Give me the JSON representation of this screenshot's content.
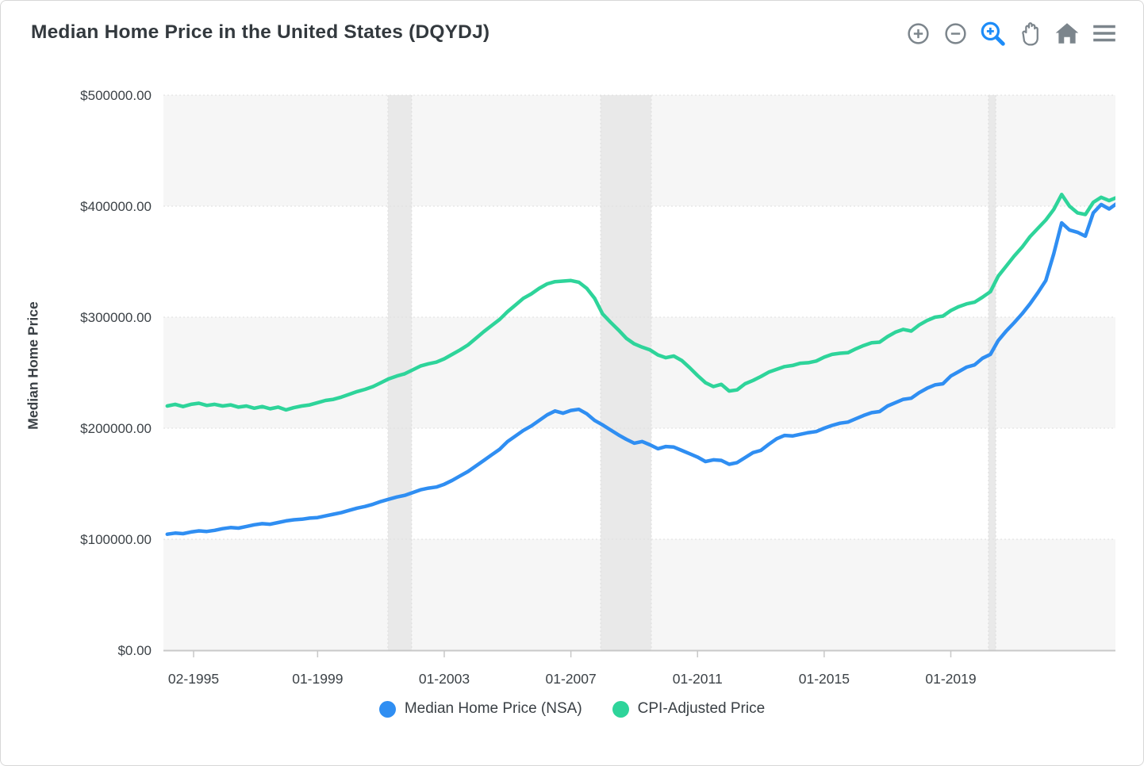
{
  "header": {
    "title": "Median Home Price in the United States (DQYDJ)",
    "icon_color": "#7c858c",
    "accent_color": "#1d8cf8",
    "toolbar": [
      {
        "name": "zoom-in",
        "active": false
      },
      {
        "name": "zoom-out",
        "active": false
      },
      {
        "name": "zoom-select",
        "active": true
      },
      {
        "name": "pan",
        "active": false
      },
      {
        "name": "home",
        "active": false
      },
      {
        "name": "menu",
        "active": false
      }
    ]
  },
  "legend": {
    "items": [
      {
        "label": "Median Home Price (NSA)",
        "color": "#2f8ef2"
      },
      {
        "label": "CPI-Adjusted Price",
        "color": "#2ed49a"
      }
    ]
  },
  "chart_data": {
    "type": "line",
    "title": "Median Home Price in the United States (DQYDJ)",
    "xlabel": "",
    "ylabel": "Median Home Price",
    "x_range": [
      1994.13,
      2024.2
    ],
    "ylim": [
      0,
      500000
    ],
    "grid": "horizontal-dotted",
    "band_fill_values": [
      [
        0,
        100000
      ],
      [
        200000,
        300000
      ],
      [
        400000,
        500000
      ]
    ],
    "band_color": "#f6f6f6",
    "recession_shading": [
      {
        "start": 2001.22,
        "end": 2001.97
      },
      {
        "start": 2007.94,
        "end": 2009.54
      },
      {
        "start": 2020.19,
        "end": 2020.42
      }
    ],
    "recession_color": "#e9e9e9",
    "y_ticks": [
      {
        "value": 0,
        "label": "$0.00"
      },
      {
        "value": 100000,
        "label": "$100000.00"
      },
      {
        "value": 200000,
        "label": "$200000.00"
      },
      {
        "value": 300000,
        "label": "$300000.00"
      },
      {
        "value": 400000,
        "label": "$400000.00"
      },
      {
        "value": 500000,
        "label": "$500000.00"
      }
    ],
    "x_ticks": [
      {
        "value": 1995.083,
        "label": "02-1995"
      },
      {
        "value": 1999.0,
        "label": "01-1999"
      },
      {
        "value": 2003.0,
        "label": "01-2003"
      },
      {
        "value": 2007.0,
        "label": "01-2007"
      },
      {
        "value": 2011.0,
        "label": "01-2011"
      },
      {
        "value": 2015.0,
        "label": "01-2015"
      },
      {
        "value": 2019.0,
        "label": "01-2019"
      }
    ],
    "legend_position": "bottom",
    "x": [
      1994.25,
      1994.5,
      1994.75,
      1995.0,
      1995.25,
      1995.5,
      1995.75,
      1996.0,
      1996.25,
      1996.5,
      1996.75,
      1997.0,
      1997.25,
      1997.5,
      1997.75,
      1998.0,
      1998.25,
      1998.5,
      1998.75,
      1999.0,
      1999.25,
      1999.5,
      1999.75,
      2000.0,
      2000.25,
      2000.5,
      2000.75,
      2001.0,
      2001.25,
      2001.5,
      2001.75,
      2002.0,
      2002.25,
      2002.5,
      2002.75,
      2003.0,
      2003.25,
      2003.5,
      2003.75,
      2004.0,
      2004.25,
      2004.5,
      2004.75,
      2005.0,
      2005.25,
      2005.5,
      2005.75,
      2006.0,
      2006.25,
      2006.5,
      2006.75,
      2007.0,
      2007.25,
      2007.5,
      2007.75,
      2008.0,
      2008.25,
      2008.5,
      2008.75,
      2009.0,
      2009.25,
      2009.5,
      2009.75,
      2010.0,
      2010.25,
      2010.5,
      2010.75,
      2011.0,
      2011.25,
      2011.5,
      2011.75,
      2012.0,
      2012.25,
      2012.5,
      2012.75,
      2013.0,
      2013.25,
      2013.5,
      2013.75,
      2014.0,
      2014.25,
      2014.5,
      2014.75,
      2015.0,
      2015.25,
      2015.5,
      2015.75,
      2016.0,
      2016.25,
      2016.5,
      2016.75,
      2017.0,
      2017.25,
      2017.5,
      2017.75,
      2018.0,
      2018.25,
      2018.5,
      2018.75,
      2019.0,
      2019.25,
      2019.5,
      2019.75,
      2020.0,
      2020.25,
      2020.5,
      2020.75,
      2021.0,
      2021.25,
      2021.5,
      2021.75,
      2022.0,
      2022.25,
      2022.5,
      2022.75,
      2023.0,
      2023.25,
      2023.5,
      2023.75,
      2024.0,
      2024.25
    ],
    "series": [
      {
        "name": "Median Home Price (NSA)",
        "color": "#2f8ef2",
        "values": [
          104500,
          105500,
          105000,
          106500,
          107500,
          107000,
          108000,
          109500,
          110500,
          110000,
          111500,
          113000,
          114000,
          113500,
          115000,
          116500,
          117500,
          118000,
          119000,
          119500,
          121000,
          122500,
          124000,
          126000,
          128000,
          129500,
          131500,
          134000,
          136000,
          138000,
          139500,
          142000,
          144500,
          146000,
          147000,
          149500,
          153000,
          157000,
          161000,
          166000,
          171000,
          176000,
          181000,
          188000,
          193000,
          198000,
          202000,
          207000,
          212000,
          215500,
          213500,
          216000,
          217000,
          213000,
          207000,
          203000,
          198500,
          194000,
          190000,
          186500,
          188000,
          185000,
          181500,
          183500,
          183000,
          180000,
          177000,
          174000,
          170000,
          171500,
          171000,
          167500,
          169000,
          173500,
          178000,
          180000,
          185500,
          190500,
          193500,
          193000,
          194500,
          196000,
          197000,
          200000,
          202500,
          204500,
          205500,
          208500,
          211500,
          214000,
          215000,
          220000,
          223000,
          226000,
          227000,
          232000,
          236000,
          239000,
          240000,
          247000,
          251000,
          255000,
          257000,
          263000,
          266500,
          279000,
          287500,
          295000,
          303000,
          312000,
          322000,
          333000,
          357000,
          385000,
          378500,
          376500,
          373000,
          394000,
          401500,
          397500,
          402500
        ]
      },
      {
        "name": "CPI-Adjusted Price",
        "color": "#2ed49a",
        "values": [
          220000,
          221500,
          219500,
          221500,
          222500,
          220500,
          221500,
          220000,
          221000,
          219000,
          220000,
          218000,
          219500,
          217500,
          219000,
          216500,
          218500,
          220000,
          221000,
          223000,
          225000,
          226000,
          228000,
          230500,
          233000,
          235000,
          237500,
          241000,
          244500,
          247000,
          249000,
          252500,
          256000,
          258000,
          259500,
          262500,
          266500,
          270500,
          275000,
          281000,
          287000,
          292500,
          298000,
          305000,
          311000,
          317000,
          321000,
          326000,
          330000,
          332000,
          332500,
          333000,
          331500,
          326000,
          317000,
          303000,
          295500,
          288500,
          281000,
          276000,
          273000,
          270500,
          266000,
          263500,
          265000,
          261000,
          254500,
          247500,
          241000,
          237500,
          239500,
          233500,
          234500,
          240000,
          243000,
          246500,
          250500,
          253000,
          255500,
          256500,
          258500,
          259000,
          260500,
          264000,
          266500,
          267500,
          268000,
          271500,
          274500,
          277000,
          277500,
          282500,
          286500,
          289000,
          287500,
          293000,
          297000,
          300000,
          301000,
          306000,
          309500,
          312000,
          313500,
          318000,
          323000,
          337000,
          346000,
          355000,
          363000,
          372500,
          380000,
          387500,
          397000,
          410500,
          400000,
          394000,
          392500,
          403500,
          408000,
          405000,
          408000
        ]
      }
    ]
  }
}
